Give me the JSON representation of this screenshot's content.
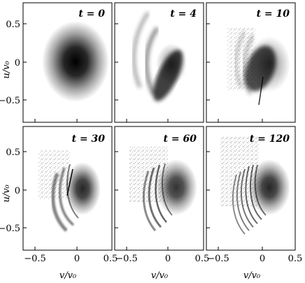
{
  "figure": {
    "panels": [
      {
        "t_label": "t = 0"
      },
      {
        "t_label": "t = 4"
      },
      {
        "t_label": "t = 10"
      },
      {
        "t_label": "t = 30"
      },
      {
        "t_label": "t = 60"
      },
      {
        "t_label": "t = 120"
      }
    ],
    "y_ticks": [
      "0.5",
      "0",
      "−0.5"
    ],
    "x_ticks": [
      "−0.5",
      "0",
      "0.5"
    ],
    "y_axis_label": "u/v₀",
    "x_axis_label": "v/v₀"
  }
}
